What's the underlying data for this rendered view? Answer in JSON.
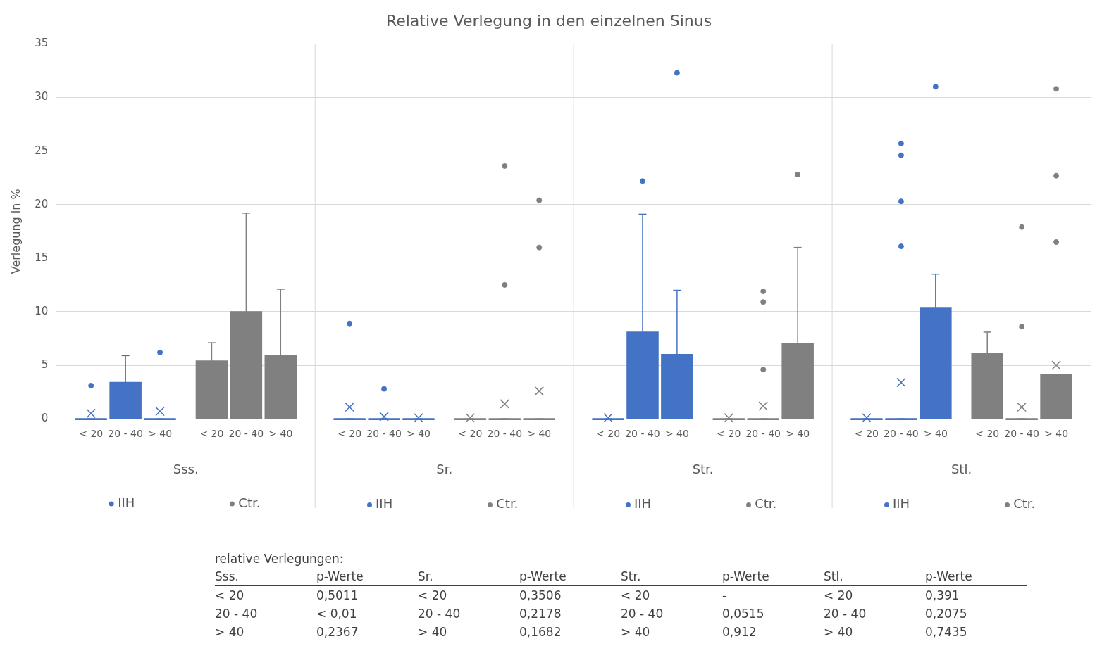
{
  "chart_data": {
    "type": "box",
    "title": "Relative Verlegung in den einzelnen Sinus",
    "ylabel": "Verlegung in %",
    "categories": [
      "< 20",
      "20 - 40",
      "> 40",
      "< 20",
      "20 - 40",
      "> 40",
      "< 20",
      "20 - 40",
      "> 40",
      "< 20",
      "20 - 40",
      "> 40",
      "< 20",
      "20 - 40",
      "> 40",
      "< 20",
      "20 - 40",
      "> 40",
      "< 20",
      "20 - 40",
      "> 40",
      "< 20",
      "20 - 40",
      "> 40"
    ],
    "ylim": [
      0,
      35
    ],
    "yticks": [
      0,
      5,
      10,
      15,
      20,
      25,
      30,
      35
    ],
    "grid": "y",
    "legend": "bottom",
    "series": [
      {
        "name": "IIH",
        "color": "#4472c4",
        "boxes": [
          {
            "low": 0,
            "q1": 0,
            "median": 0,
            "q3": 0,
            "high": 0,
            "mean": 0.5,
            "outliers": [
              3.1
            ]
          },
          {
            "low": 0,
            "q1": 0,
            "median": 0,
            "q3": 3.4,
            "high": 5.9,
            "mean": 1.2
          },
          {
            "low": 0,
            "q1": 0,
            "median": 0,
            "q3": 0,
            "high": 0,
            "mean": 0.7,
            "outliers": [
              6.2
            ]
          },
          null,
          null,
          null,
          {
            "low": 0,
            "q1": 0,
            "median": 0,
            "q3": 0,
            "high": 0,
            "mean": 1.1,
            "outliers": [
              8.9
            ]
          },
          {
            "low": 0,
            "q1": 0,
            "median": 0,
            "q3": 0,
            "high": 0,
            "mean": 0.2,
            "outliers": [
              2.8
            ]
          },
          {
            "low": 0,
            "q1": 0,
            "median": 0,
            "q3": 0,
            "high": 0,
            "mean": 0.1
          },
          null,
          null,
          null,
          {
            "low": 0,
            "q1": 0,
            "median": 0,
            "q3": 0,
            "high": 0,
            "mean": 0.1
          },
          {
            "low": 0,
            "q1": 0,
            "median": 0,
            "q3": 8.1,
            "high": 19.1,
            "mean": 4.2,
            "outliers": [
              22.2
            ]
          },
          {
            "low": 0,
            "q1": 0,
            "median": 0,
            "q3": 6.0,
            "high": 12.0,
            "mean": 4.9,
            "outliers": [
              32.3
            ]
          },
          null,
          null,
          null,
          {
            "low": 0,
            "q1": 0,
            "median": 0,
            "q3": 0,
            "high": 0,
            "mean": 0.1
          },
          {
            "low": 0,
            "q1": 0,
            "median": 0,
            "q3": 0,
            "high": 0,
            "mean": 3.4,
            "outliers": [
              25.7,
              24.6,
              20.3,
              16.1
            ]
          },
          {
            "low": 0,
            "q1": 0,
            "median": 0,
            "q3": 10.4,
            "high": 13.5,
            "mean": 6.6,
            "outliers": [
              31.0
            ]
          },
          null,
          null,
          null
        ]
      },
      {
        "name": "Ctr.",
        "color": "#808080",
        "boxes": [
          null,
          null,
          null,
          {
            "low": 0,
            "q1": 0,
            "median": 0,
            "q3": 5.4,
            "high": 7.1,
            "mean": 1.8
          },
          {
            "low": 0,
            "q1": 0,
            "median": 0,
            "q3": 10.0,
            "high": 19.2,
            "mean": 4.9
          },
          {
            "low": 0,
            "q1": 0,
            "median": 0,
            "q3": 5.9,
            "high": 12.1,
            "mean": 2.2
          },
          null,
          null,
          null,
          {
            "low": 0,
            "q1": 0,
            "median": 0,
            "q3": 0,
            "high": 0,
            "mean": 0.1
          },
          {
            "low": 0,
            "q1": 0,
            "median": 0,
            "q3": 0,
            "high": 0,
            "mean": 1.4,
            "outliers": [
              23.6,
              12.5
            ]
          },
          {
            "low": 0,
            "q1": 0,
            "median": 0,
            "q3": 0,
            "high": 0,
            "mean": 2.6,
            "outliers": [
              20.4,
              16.0
            ]
          },
          null,
          null,
          null,
          {
            "low": 0,
            "q1": 0,
            "median": 0,
            "q3": 0,
            "high": 0,
            "mean": 0.1
          },
          {
            "low": 0,
            "q1": 0,
            "median": 0,
            "q3": 0,
            "high": 0,
            "mean": 1.2,
            "outliers": [
              11.9,
              10.9,
              4.6
            ]
          },
          {
            "low": 0,
            "q1": 0,
            "median": 0,
            "q3": 7.0,
            "high": 16.0,
            "mean": 4.5,
            "outliers": [
              22.8
            ]
          },
          null,
          null,
          null,
          {
            "low": 0,
            "q1": 0,
            "median": 0,
            "q3": 6.1,
            "high": 8.1,
            "mean": 2.0
          },
          {
            "low": 0,
            "q1": 0,
            "median": 0,
            "q3": 0,
            "high": 0,
            "mean": 1.1,
            "outliers": [
              17.9,
              8.6
            ]
          },
          {
            "low": 0,
            "q1": 0,
            "median": 0,
            "q3": 4.1,
            "high": 4.1,
            "mean": 5.0,
            "outliers": [
              30.8,
              22.7,
              16.5
            ]
          }
        ]
      }
    ],
    "annotations": [
      "Sss.",
      "Sr.",
      "Str.",
      "Stl.",
      "relative Verlegungen:",
      "Sss.",
      "p-Werte",
      "Sr.",
      "p-Werte",
      "Str.",
      "p-Werte",
      "Stl.",
      "p-Werte",
      "< 20",
      "0,5011",
      "< 20",
      "0,3506",
      "< 20",
      "-",
      "< 20",
      "0,391",
      "20 - 40",
      "< 0,01",
      "20 - 40",
      "0,2178",
      "20 - 40",
      "0,0515",
      "20 - 40",
      "0,2075",
      "> 40",
      "0,2367",
      "> 40",
      "0,1682",
      "> 40",
      "0,912",
      "> 40",
      "0,7435"
    ]
  }
}
